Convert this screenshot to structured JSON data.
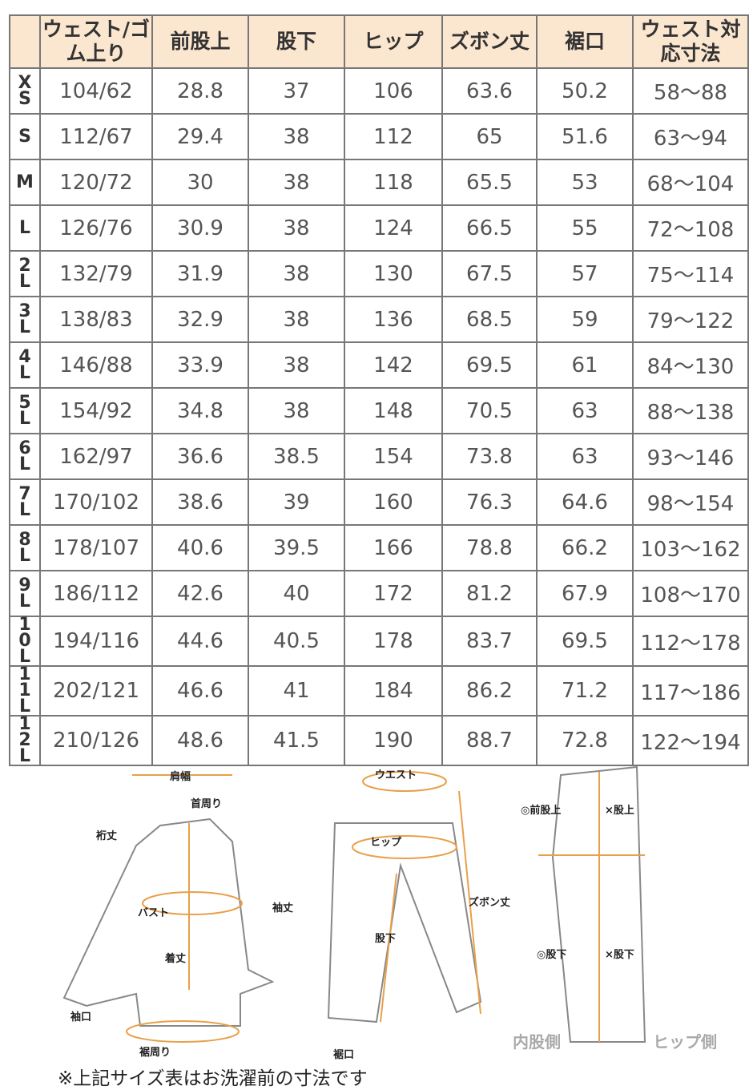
{
  "table": {
    "headers": [
      "",
      "ウェスト/ゴム上り",
      "前股上",
      "股下",
      "ヒップ",
      "ズボン丈",
      "裾口",
      "ウェスト対応寸法"
    ],
    "rows": [
      [
        "XS",
        "104/62",
        "28.8",
        "37",
        "106",
        "63.6",
        "50.2",
        "58～88"
      ],
      [
        "S",
        "112/67",
        "29.4",
        "38",
        "112",
        "65",
        "51.6",
        "63～94"
      ],
      [
        "M",
        "120/72",
        "30",
        "38",
        "118",
        "65.5",
        "53",
        "68～104"
      ],
      [
        "L",
        "126/76",
        "30.9",
        "38",
        "124",
        "66.5",
        "55",
        "72～108"
      ],
      [
        "2L",
        "132/79",
        "31.9",
        "38",
        "130",
        "67.5",
        "57",
        "75～114"
      ],
      [
        "3L",
        "138/83",
        "32.9",
        "38",
        "136",
        "68.5",
        "59",
        "79～122"
      ],
      [
        "4L",
        "146/88",
        "33.9",
        "38",
        "142",
        "69.5",
        "61",
        "84～130"
      ],
      [
        "5L",
        "154/92",
        "34.8",
        "38",
        "148",
        "70.5",
        "63",
        "88～138"
      ],
      [
        "6L",
        "162/97",
        "36.6",
        "38.5",
        "154",
        "73.8",
        "63",
        "93～146"
      ],
      [
        "7L",
        "170/102",
        "38.6",
        "39",
        "160",
        "76.3",
        "64.6",
        "98～154"
      ],
      [
        "8L",
        "178/107",
        "40.6",
        "39.5",
        "166",
        "78.8",
        "66.2",
        "103～162"
      ],
      [
        "9L",
        "186/112",
        "42.6",
        "40",
        "172",
        "81.2",
        "67.9",
        "108～170"
      ],
      [
        "10L",
        "194/116",
        "44.6",
        "40.5",
        "178",
        "83.7",
        "69.5",
        "112～178"
      ],
      [
        "11L",
        "202/121",
        "46.6",
        "41",
        "184",
        "86.2",
        "71.2",
        "117～186"
      ],
      [
        "12L",
        "210/126",
        "48.6",
        "41.5",
        "190",
        "88.7",
        "72.8",
        "122～194"
      ]
    ]
  },
  "diagram": {
    "shirt": {
      "shoulder": "肩幅",
      "neck": "首周り",
      "yuki": "裄丈",
      "sleeve": "袖丈",
      "bust": "バスト",
      "length": "着丈",
      "cuff": "袖口",
      "hem": "裾周り"
    },
    "pants": {
      "waist": "ウエスト",
      "hip": "ヒップ",
      "inseam": "股下",
      "length": "ズボン丈",
      "hem": "裾口"
    },
    "side": {
      "front_rise": "◎前股上",
      "rise": "×股上",
      "inseam_in": "◎股下",
      "inseam_out": "×股下",
      "inner": "内股側",
      "hip_side": "ヒップ側"
    }
  },
  "accent": "#e8a04a",
  "note": "※上記サイズ表はお洗濯前の寸法です"
}
